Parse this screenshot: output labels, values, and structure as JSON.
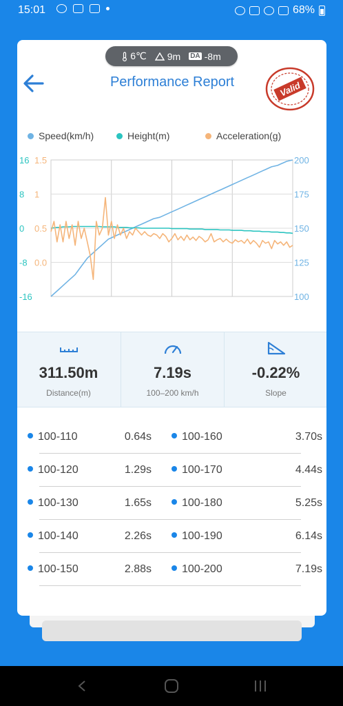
{
  "status_bar": {
    "time": "15:01",
    "battery": "68%"
  },
  "conditions": {
    "temperature": "6℃",
    "altitude": "9m",
    "da_label": "DA",
    "density_altitude": "-8m"
  },
  "header": {
    "title": "Performance Report",
    "stamp_text": "Valid"
  },
  "legend": [
    {
      "label": "Speed(km/h)",
      "color": "#6fb3e4"
    },
    {
      "label": "Height(m)",
      "color": "#2bc4c0"
    },
    {
      "label": "Acceleration(g)",
      "color": "#f5b57a"
    }
  ],
  "chart_data": {
    "type": "line",
    "height_axis": {
      "ticks": [
        "16",
        "8",
        "0",
        "-8",
        "-16"
      ],
      "range": [
        -16,
        16
      ]
    },
    "accel_axis": {
      "ticks": [
        "1.5",
        "1",
        "0.5",
        "0.0"
      ],
      "range": [
        -0.5,
        1.5
      ]
    },
    "speed_axis": {
      "ticks": [
        "200",
        "175",
        "150",
        "125",
        "100"
      ],
      "range": [
        100,
        200
      ]
    },
    "x": [
      0,
      1,
      2,
      3,
      4,
      5,
      6,
      7,
      8,
      9,
      10,
      11,
      12,
      13,
      14,
      15,
      16,
      17,
      18,
      19,
      20,
      21,
      22,
      23,
      24,
      25,
      26,
      27,
      28,
      29,
      30,
      31,
      32,
      33,
      34,
      35,
      36,
      37,
      38,
      39,
      40,
      41,
      42,
      43,
      44,
      45,
      46,
      47,
      48,
      49,
      50,
      51,
      52,
      53,
      54,
      55,
      56,
      57,
      58,
      59,
      60,
      61,
      62,
      63,
      64,
      65,
      66,
      67,
      68,
      69,
      70,
      71,
      72,
      73,
      74,
      75,
      76,
      77,
      78,
      79,
      80
    ],
    "series": [
      {
        "name": "Speed(km/h)",
        "axis": "speed",
        "color": "#6fb3e4",
        "values": [
          100,
          102,
          104,
          106,
          108,
          110,
          112,
          114,
          116,
          119,
          122,
          125,
          128,
          130,
          132,
          134,
          136,
          138,
          140,
          142,
          143,
          144,
          145,
          146,
          147,
          148,
          149,
          150,
          151,
          152,
          153,
          154,
          155,
          156,
          157,
          157.5,
          158,
          159,
          160,
          161,
          162,
          163,
          164,
          165,
          166,
          167,
          168,
          169,
          170,
          171,
          172,
          173,
          174,
          175,
          176,
          177,
          178,
          179,
          180,
          181,
          182,
          183,
          184,
          185,
          186,
          187,
          188,
          189,
          190,
          191,
          192,
          193,
          194,
          195,
          195.5,
          196,
          197,
          198,
          199,
          199.5,
          200
        ]
      },
      {
        "name": "Height(m)",
        "axis": "height",
        "color": "#2bc4c0",
        "values": [
          0,
          0.1,
          0.2,
          0.2,
          0.3,
          0.3,
          0.3,
          0.4,
          0.4,
          0.4,
          0.4,
          0.4,
          0.4,
          0.4,
          0.4,
          0.4,
          0.4,
          0.3,
          0.3,
          0.3,
          0.3,
          0.3,
          0.2,
          0.2,
          0.2,
          0.2,
          0.1,
          0.1,
          0.1,
          0.1,
          0,
          0,
          0,
          0,
          0,
          0,
          0,
          0,
          0,
          0,
          -0.1,
          -0.1,
          -0.1,
          -0.1,
          -0.1,
          -0.1,
          -0.2,
          -0.2,
          -0.2,
          -0.2,
          -0.2,
          -0.3,
          -0.3,
          -0.3,
          -0.3,
          -0.3,
          -0.4,
          -0.4,
          -0.4,
          -0.4,
          -0.5,
          -0.5,
          -0.5,
          -0.5,
          -0.6,
          -0.6,
          -0.6,
          -0.7,
          -0.7,
          -0.7,
          -0.8,
          -0.8,
          -0.8,
          -0.9,
          -0.9,
          -0.9,
          -1.0,
          -1.0,
          -1.1,
          -1.1,
          -1.2
        ]
      },
      {
        "name": "Acceleration(g)",
        "axis": "accel",
        "color": "#f5b57a",
        "values": [
          0.45,
          0.6,
          0.3,
          0.55,
          0.3,
          0.6,
          0.35,
          0.55,
          0.25,
          0.6,
          0.35,
          0.5,
          0.3,
          0.1,
          -0.25,
          0.6,
          0.4,
          0.5,
          0.95,
          0.4,
          0.6,
          0.35,
          0.55,
          0.4,
          0.5,
          0.35,
          0.45,
          0.4,
          0.5,
          0.45,
          0.4,
          0.45,
          0.4,
          0.38,
          0.42,
          0.4,
          0.35,
          0.42,
          0.38,
          0.3,
          0.35,
          0.42,
          0.33,
          0.38,
          0.32,
          0.4,
          0.33,
          0.37,
          0.32,
          0.38,
          0.35,
          0.3,
          0.33,
          0.42,
          0.3,
          0.33,
          0.35,
          0.3,
          0.34,
          0.3,
          0.28,
          0.33,
          0.3,
          0.32,
          0.28,
          0.34,
          0.27,
          0.32,
          0.28,
          0.22,
          0.32,
          0.28,
          0.3,
          0.2,
          0.32,
          0.27,
          0.3,
          0.25,
          0.3,
          0.22,
          0.25
        ]
      }
    ],
    "grid": true
  },
  "stats": [
    {
      "icon": "ruler-icon",
      "value": "311.50m",
      "label": "Distance(m)"
    },
    {
      "icon": "speedometer-icon",
      "value": "7.19s",
      "label": "100–200 km/h"
    },
    {
      "icon": "slope-icon",
      "value": "-0.22%",
      "label": "Slope"
    }
  ],
  "splits": [
    {
      "range": "100-110",
      "time": "0.64s"
    },
    {
      "range": "100-120",
      "time": "1.29s"
    },
    {
      "range": "100-130",
      "time": "1.65s"
    },
    {
      "range": "100-140",
      "time": "2.26s"
    },
    {
      "range": "100-150",
      "time": "2.88s"
    },
    {
      "range": "100-160",
      "time": "3.70s"
    },
    {
      "range": "100-170",
      "time": "4.44s"
    },
    {
      "range": "100-180",
      "time": "5.25s"
    },
    {
      "range": "100-190",
      "time": "6.14s"
    },
    {
      "range": "100-200",
      "time": "7.19s"
    }
  ]
}
